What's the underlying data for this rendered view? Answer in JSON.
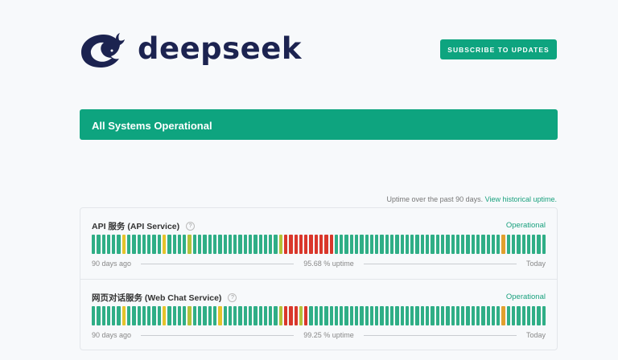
{
  "header": {
    "logo_text": "deepseek",
    "subscribe_label": "SUBSCRIBE TO UPDATES"
  },
  "banner": {
    "text": "All Systems Operational"
  },
  "uptime_note": {
    "text": "Uptime over the past 90 days.",
    "link": "View historical uptime."
  },
  "colors": {
    "operational": "#2fae86",
    "minor": "#e5c32b",
    "degraded": "#b4c23a",
    "partial": "#e1a02e",
    "major": "#d9372b",
    "brand": "#0ea47f"
  },
  "components": [
    {
      "name": "API 服务 (API Service)",
      "help": "?",
      "status": "Operational",
      "start_label": "90 days ago",
      "uptime": "95.68 % uptime",
      "end_label": "Today",
      "days": {
        "minor": [
          6,
          14
        ],
        "degraded": [
          19,
          37
        ],
        "major": [
          38,
          39,
          40,
          41,
          42,
          43,
          44,
          45,
          46,
          47
        ],
        "partial": [
          81
        ]
      }
    },
    {
      "name": "网页对话服务 (Web Chat Service)",
      "help": "?",
      "status": "Operational",
      "start_label": "90 days ago",
      "uptime": "99.25 % uptime",
      "end_label": "Today",
      "days": {
        "minor": [
          6,
          14,
          25
        ],
        "degraded": [
          19,
          37,
          41
        ],
        "major": [
          38,
          39,
          40,
          42
        ],
        "partial": [
          81
        ]
      }
    }
  ]
}
